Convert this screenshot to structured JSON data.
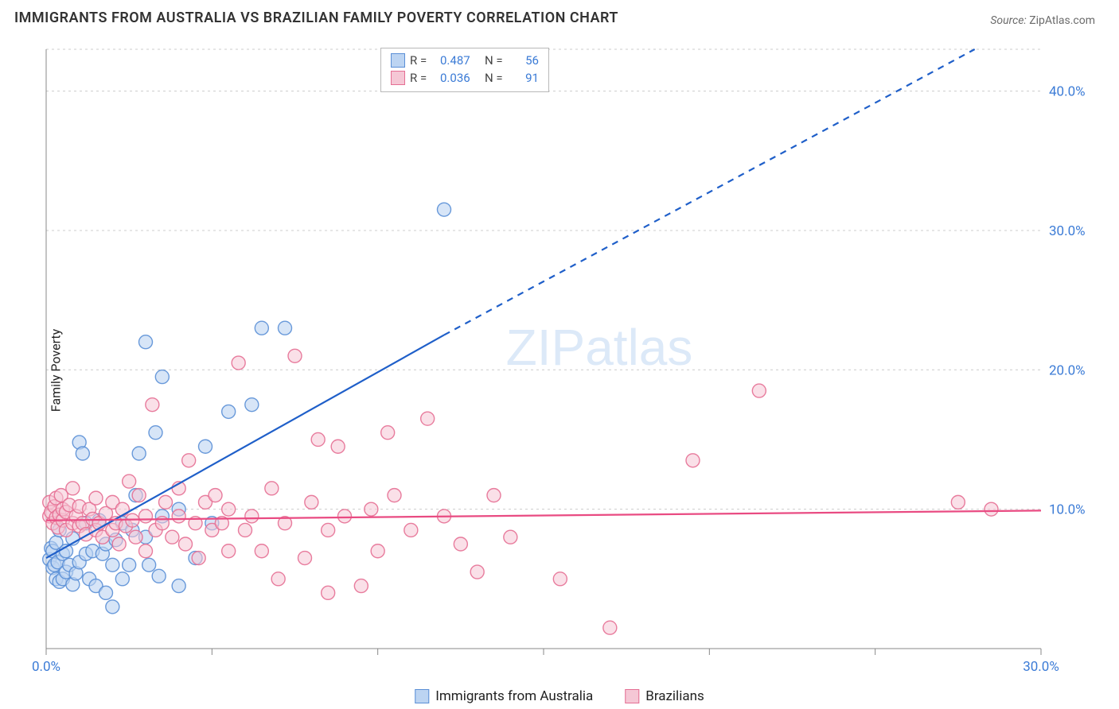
{
  "title": "IMMIGRANTS FROM AUSTRALIA VS BRAZILIAN FAMILY POVERTY CORRELATION CHART",
  "source_label": "Source:",
  "source_value": "ZipAtlas.com",
  "ylabel": "Family Poverty",
  "watermark": "ZIPatlas",
  "watermark_fontsize": 64,
  "watermark_color": "#dce9f8",
  "chart": {
    "type": "scatter",
    "background_color": "#ffffff",
    "grid_color": "#cccccc",
    "axis_color": "#888888",
    "xlim": [
      0,
      30
    ],
    "ylim": [
      0,
      43
    ],
    "x_ticks": [
      0,
      5,
      10,
      15,
      20,
      25,
      30
    ],
    "x_tick_labels": {
      "0": "0.0%",
      "30": "30.0%"
    },
    "y_ticks": [
      0,
      10,
      20,
      30,
      40
    ],
    "y_tick_labels": {
      "10": "10.0%",
      "20": "20.0%",
      "30": "30.0%",
      "40": "40.0%"
    },
    "tick_label_color": "#3b7bd6",
    "tick_label_fontsize": 17,
    "series": [
      {
        "name": "Immigrants from Australia",
        "label": "Immigrants from Australia",
        "marker_fill": "#bcd4f2",
        "marker_stroke": "#5a8fd6",
        "marker_fill_opacity": 0.6,
        "marker_stroke_opacity": 0.9,
        "marker_radius": 8.5,
        "R": "0.487",
        "N": "56",
        "trend_color": "#1f5fc9",
        "trend_width": 2.2,
        "trend_solid": {
          "x1": 0,
          "y1": 6.5,
          "x2": 12,
          "y2": 22.5
        },
        "trend_dashed": {
          "x1": 12,
          "y1": 22.5,
          "x2": 28,
          "y2": 43
        },
        "points": [
          [
            0.1,
            6.4
          ],
          [
            0.15,
            7.2
          ],
          [
            0.2,
            7.0
          ],
          [
            0.2,
            5.8
          ],
          [
            0.25,
            6.0
          ],
          [
            0.3,
            7.6
          ],
          [
            0.3,
            5.0
          ],
          [
            0.35,
            6.2
          ],
          [
            0.4,
            8.5
          ],
          [
            0.4,
            4.8
          ],
          [
            0.5,
            5.0
          ],
          [
            0.5,
            6.8
          ],
          [
            0.6,
            7.0
          ],
          [
            0.6,
            5.5
          ],
          [
            0.7,
            6.0
          ],
          [
            0.8,
            7.9
          ],
          [
            0.8,
            4.6
          ],
          [
            0.9,
            5.4
          ],
          [
            1.0,
            6.2
          ],
          [
            1.0,
            14.8
          ],
          [
            1.1,
            14.0
          ],
          [
            1.2,
            6.8
          ],
          [
            1.2,
            9.0
          ],
          [
            1.3,
            5.0
          ],
          [
            1.4,
            7.0
          ],
          [
            1.5,
            4.5
          ],
          [
            1.6,
            9.2
          ],
          [
            1.7,
            6.8
          ],
          [
            1.8,
            7.5
          ],
          [
            1.8,
            4.0
          ],
          [
            2.0,
            6.0
          ],
          [
            2.0,
            3.0
          ],
          [
            2.1,
            7.8
          ],
          [
            2.3,
            9.0
          ],
          [
            2.3,
            5.0
          ],
          [
            2.5,
            6.0
          ],
          [
            2.6,
            8.5
          ],
          [
            2.7,
            11.0
          ],
          [
            2.8,
            14.0
          ],
          [
            3.0,
            8.0
          ],
          [
            3.0,
            22.0
          ],
          [
            3.1,
            6.0
          ],
          [
            3.3,
            15.5
          ],
          [
            3.4,
            5.2
          ],
          [
            3.5,
            9.5
          ],
          [
            3.5,
            19.5
          ],
          [
            4.0,
            4.5
          ],
          [
            4.0,
            10.0
          ],
          [
            4.5,
            6.5
          ],
          [
            4.8,
            14.5
          ],
          [
            5.0,
            9.0
          ],
          [
            5.5,
            17.0
          ],
          [
            6.2,
            17.5
          ],
          [
            6.5,
            23.0
          ],
          [
            7.2,
            23.0
          ],
          [
            12.0,
            31.5
          ]
        ]
      },
      {
        "name": "Brazilians",
        "label": "Brazilians",
        "marker_fill": "#f5c7d5",
        "marker_stroke": "#e56f94",
        "marker_fill_opacity": 0.55,
        "marker_stroke_opacity": 0.9,
        "marker_radius": 8.5,
        "R": "0.036",
        "N": "91",
        "trend_color": "#e94b82",
        "trend_width": 2.2,
        "trend_solid": {
          "x1": 0,
          "y1": 9.2,
          "x2": 30,
          "y2": 9.9
        },
        "points": [
          [
            0.1,
            9.5
          ],
          [
            0.1,
            10.5
          ],
          [
            0.15,
            9.8
          ],
          [
            0.2,
            9.0
          ],
          [
            0.25,
            10.2
          ],
          [
            0.3,
            9.4
          ],
          [
            0.3,
            10.8
          ],
          [
            0.35,
            8.7
          ],
          [
            0.4,
            9.6
          ],
          [
            0.45,
            11.0
          ],
          [
            0.5,
            9.2
          ],
          [
            0.5,
            10.0
          ],
          [
            0.6,
            8.5
          ],
          [
            0.6,
            9.8
          ],
          [
            0.7,
            10.3
          ],
          [
            0.8,
            9.0
          ],
          [
            0.8,
            11.5
          ],
          [
            0.9,
            9.5
          ],
          [
            1.0,
            8.8
          ],
          [
            1.0,
            10.2
          ],
          [
            1.1,
            9.0
          ],
          [
            1.2,
            8.2
          ],
          [
            1.3,
            10.0
          ],
          [
            1.4,
            9.3
          ],
          [
            1.5,
            8.5
          ],
          [
            1.5,
            10.8
          ],
          [
            1.6,
            9.0
          ],
          [
            1.7,
            8.0
          ],
          [
            1.8,
            9.7
          ],
          [
            2.0,
            10.5
          ],
          [
            2.0,
            8.5
          ],
          [
            2.1,
            9.0
          ],
          [
            2.2,
            7.5
          ],
          [
            2.3,
            10.0
          ],
          [
            2.4,
            8.8
          ],
          [
            2.5,
            12.0
          ],
          [
            2.6,
            9.2
          ],
          [
            2.7,
            8.0
          ],
          [
            2.8,
            11.0
          ],
          [
            3.0,
            9.5
          ],
          [
            3.0,
            7.0
          ],
          [
            3.2,
            17.5
          ],
          [
            3.3,
            8.5
          ],
          [
            3.5,
            9.0
          ],
          [
            3.6,
            10.5
          ],
          [
            3.8,
            8.0
          ],
          [
            4.0,
            9.5
          ],
          [
            4.0,
            11.5
          ],
          [
            4.2,
            7.5
          ],
          [
            4.3,
            13.5
          ],
          [
            4.5,
            9.0
          ],
          [
            4.6,
            6.5
          ],
          [
            4.8,
            10.5
          ],
          [
            5.0,
            8.5
          ],
          [
            5.1,
            11.0
          ],
          [
            5.3,
            9.0
          ],
          [
            5.5,
            7.0
          ],
          [
            5.5,
            10.0
          ],
          [
            5.8,
            20.5
          ],
          [
            6.0,
            8.5
          ],
          [
            6.2,
            9.5
          ],
          [
            6.5,
            7.0
          ],
          [
            6.8,
            11.5
          ],
          [
            7.0,
            5.0
          ],
          [
            7.2,
            9.0
          ],
          [
            7.5,
            21.0
          ],
          [
            7.8,
            6.5
          ],
          [
            8.0,
            10.5
          ],
          [
            8.2,
            15.0
          ],
          [
            8.5,
            8.5
          ],
          [
            8.5,
            4.0
          ],
          [
            8.8,
            14.5
          ],
          [
            9.0,
            9.5
          ],
          [
            9.5,
            4.5
          ],
          [
            9.8,
            10.0
          ],
          [
            10.0,
            7.0
          ],
          [
            10.3,
            15.5
          ],
          [
            10.5,
            11.0
          ],
          [
            11.0,
            8.5
          ],
          [
            11.5,
            16.5
          ],
          [
            12.0,
            9.5
          ],
          [
            12.5,
            7.5
          ],
          [
            13.0,
            5.5
          ],
          [
            13.5,
            11.0
          ],
          [
            14.0,
            8.0
          ],
          [
            15.5,
            5.0
          ],
          [
            17.0,
            1.5
          ],
          [
            19.5,
            13.5
          ],
          [
            21.5,
            18.5
          ],
          [
            27.5,
            10.5
          ],
          [
            28.5,
            10.0
          ]
        ]
      }
    ]
  },
  "legend_top": [
    {
      "swatch_fill": "#bcd4f2",
      "swatch_stroke": "#5a8fd6",
      "R_label": "R =",
      "R": "0.487",
      "N_label": "N =",
      "N": "56"
    },
    {
      "swatch_fill": "#f5c7d5",
      "swatch_stroke": "#e56f94",
      "R_label": "R =",
      "R": "0.036",
      "N_label": "N =",
      "N": "91"
    }
  ],
  "legend_bottom": [
    {
      "swatch_fill": "#bcd4f2",
      "swatch_stroke": "#5a8fd6",
      "label": "Immigrants from Australia"
    },
    {
      "swatch_fill": "#f5c7d5",
      "swatch_stroke": "#e56f94",
      "label": "Brazilians"
    }
  ]
}
